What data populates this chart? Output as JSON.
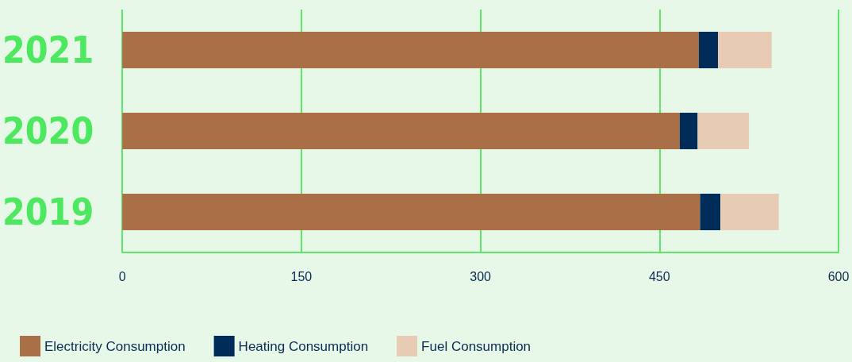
{
  "chart_data": {
    "type": "bar",
    "orientation": "horizontal",
    "stacked": true,
    "categories": [
      "2021",
      "2020",
      "2019"
    ],
    "series": [
      {
        "name": "Electricity Consumption",
        "color": "#a96f46",
        "values": [
          483,
          467,
          484
        ]
      },
      {
        "name": "Heating Consumption",
        "color": "#002c59",
        "values": [
          16,
          15,
          17
        ]
      },
      {
        "name": "Fuel Consumption",
        "color": "#e8cbb4",
        "values": [
          45,
          43,
          49
        ]
      }
    ],
    "xlim": [
      0,
      600
    ],
    "xticks": [
      0,
      150,
      300,
      450,
      600
    ],
    "grid": "x",
    "legend": "bottom left"
  }
}
